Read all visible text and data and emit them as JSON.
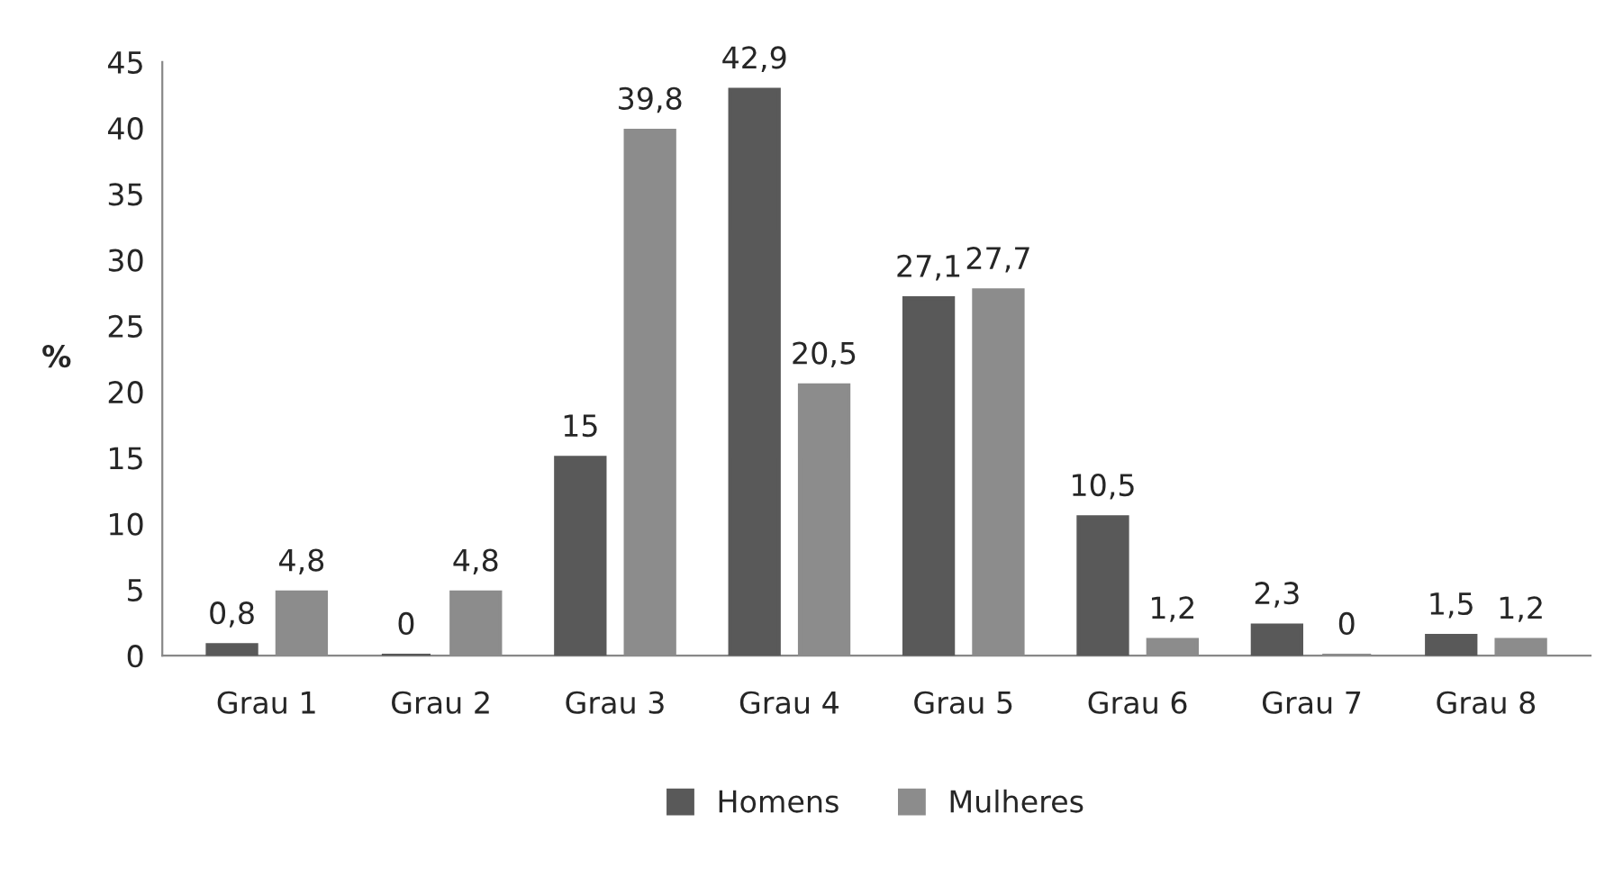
{
  "chart_data": {
    "type": "bar",
    "ylabel": "%",
    "categories": [
      "Grau 1",
      "Grau 2",
      "Grau 3",
      "Grau 4",
      "Grau 5",
      "Grau 6",
      "Grau 7",
      "Grau 8"
    ],
    "series": [
      {
        "name": "Homens",
        "color": "#595959",
        "values": [
          0.8,
          0,
          15,
          42.9,
          27.1,
          10.5,
          2.3,
          1.5
        ],
        "value_labels": [
          "0,8",
          "0",
          "15",
          "42,9",
          "27,1",
          "10,5",
          "2,3",
          "1,5"
        ]
      },
      {
        "name": "Mulheres",
        "color": "#8c8c8c",
        "values": [
          4.8,
          4.8,
          39.8,
          20.5,
          27.7,
          1.2,
          0,
          1.2
        ],
        "value_labels": [
          "4,8",
          "4,8",
          "39,8",
          "20,5",
          "27,7",
          "1,2",
          "0",
          "1,2"
        ]
      }
    ],
    "ylim": [
      0,
      45
    ],
    "yticks": [
      0,
      5,
      10,
      15,
      20,
      25,
      30,
      35,
      40,
      45
    ],
    "grid": false,
    "legend": "bottom"
  }
}
